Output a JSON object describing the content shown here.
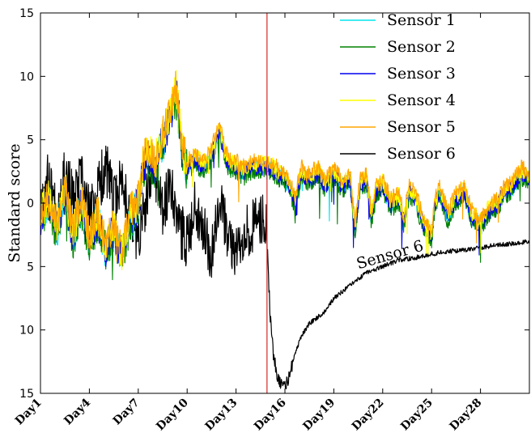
{
  "chart_data": {
    "type": "line",
    "ylabel": "Standard score",
    "ylim": [
      -15,
      15
    ],
    "yticks": [
      -15,
      -10,
      -5,
      0,
      5,
      10,
      15
    ],
    "ytick_labels": [
      "15",
      "10",
      "5",
      "0",
      "5",
      "10",
      "15"
    ],
    "xlim": [
      1,
      31
    ],
    "xticks": [
      {
        "x": 1,
        "label": "Day1"
      },
      {
        "x": 4,
        "label": "Day4"
      },
      {
        "x": 7,
        "label": "Day7"
      },
      {
        "x": 10,
        "label": "Day10"
      },
      {
        "x": 13,
        "label": "Day13"
      },
      {
        "x": 16,
        "label": "Day16"
      },
      {
        "x": 19,
        "label": "Day19"
      },
      {
        "x": 22,
        "label": "Day22"
      },
      {
        "x": 25,
        "label": "Day25"
      },
      {
        "x": 28,
        "label": "Day28"
      }
    ],
    "vline": {
      "x": 14.9,
      "color": "#d62728"
    },
    "annotation": {
      "text": "Sensor 6",
      "x": 20.5,
      "y": -5.2,
      "rotation": -16
    },
    "legend": "top-right",
    "series": [
      {
        "name": "Sensor 1",
        "color": "#00e5ee",
        "offset": -0.25,
        "noise": 0.35,
        "seed": 11
      },
      {
        "name": "Sensor 2",
        "color": "#008000",
        "offset": -0.45,
        "noise": 0.4,
        "seed": 23
      },
      {
        "name": "Sensor 3",
        "color": "#0000ee",
        "offset": -0.15,
        "noise": 0.35,
        "seed": 37
      },
      {
        "name": "Sensor 4",
        "color": "#ffff00",
        "offset": 0.15,
        "noise": 0.35,
        "seed": 41
      },
      {
        "name": "Sensor 5",
        "color": "#ffa500",
        "offset": 0.35,
        "noise": 0.3,
        "seed": 53
      },
      {
        "name": "Sensor 6",
        "color": "#000000",
        "offset": 0,
        "noise": 0,
        "seed": 67
      }
    ],
    "shared_profile": {
      "x": [
        1,
        1.5,
        2,
        2.5,
        3,
        3.5,
        4,
        4.5,
        5,
        5.5,
        6,
        6.5,
        7,
        7.3,
        7.6,
        8,
        8.5,
        9,
        9.3,
        9.5,
        9.7,
        10,
        10.5,
        11,
        11.5,
        12,
        12.3,
        12.6,
        13,
        13.5,
        14,
        14.5,
        15,
        15.5,
        16,
        16.3,
        16.6,
        17,
        17.5,
        18,
        18.5,
        19,
        19.5,
        20,
        20.3,
        20.6,
        21,
        21.3,
        21.6,
        22,
        22.5,
        23,
        23.3,
        23.6,
        24,
        24.5,
        25,
        25.2,
        25.5,
        26,
        26.5,
        27,
        27.5,
        28,
        28.5,
        29,
        29.5,
        30,
        30.5,
        31
      ],
      "y": [
        -1,
        0.5,
        -2,
        1,
        -2.5,
        0,
        -3,
        -1,
        -3.5,
        -2,
        -4,
        -1,
        0,
        3,
        4,
        3,
        5,
        7,
        9,
        7,
        4,
        3,
        3.5,
        3,
        4,
        6,
        4,
        3,
        3,
        2.5,
        3,
        3,
        3,
        2.5,
        2,
        1.5,
        0,
        2.5,
        2,
        2.5,
        1.5,
        2.5,
        1.5,
        2,
        -2,
        1.5,
        2,
        -1,
        1,
        1.5,
        0,
        0.5,
        -1.5,
        1,
        0.5,
        -1.5,
        -2.5,
        0,
        1,
        -1,
        0.5,
        1,
        -1,
        -1.5,
        -0.5,
        0,
        1,
        1.5,
        2.5,
        2
      ]
    },
    "sensor6_profile": {
      "x": [
        1,
        1.5,
        2,
        2.5,
        3,
        3.5,
        4,
        4.5,
        5,
        5.5,
        6,
        6.5,
        7,
        7.5,
        8,
        8.5,
        9,
        9.5,
        10,
        10.5,
        11,
        11.5,
        12,
        12.5,
        13,
        13.5,
        14,
        14.5,
        14.85,
        14.9,
        15.1,
        15.3,
        15.6,
        15.9,
        16.2,
        16.6,
        17,
        17.5,
        18,
        18.5,
        19,
        19.5,
        20,
        21,
        22,
        23,
        24,
        25,
        26,
        27,
        28,
        29,
        30,
        31
      ],
      "y": [
        0,
        2,
        -1,
        3,
        0,
        2,
        -1,
        1,
        3,
        0,
        2,
        -1,
        -3,
        0,
        3,
        -1,
        2,
        -2,
        -3,
        0,
        -2,
        -4,
        1,
        -3,
        -4,
        -2,
        -2,
        -1,
        -2,
        -3,
        -9,
        -12,
        -14,
        -14.5,
        -14,
        -12,
        -10.5,
        -9.5,
        -9,
        -8.5,
        -7.5,
        -7,
        -6.5,
        -5.5,
        -5,
        -4.5,
        -4.3,
        -4,
        -3.8,
        -3.7,
        -3.5,
        -3.3,
        -3.2,
        -3
      ]
    }
  }
}
